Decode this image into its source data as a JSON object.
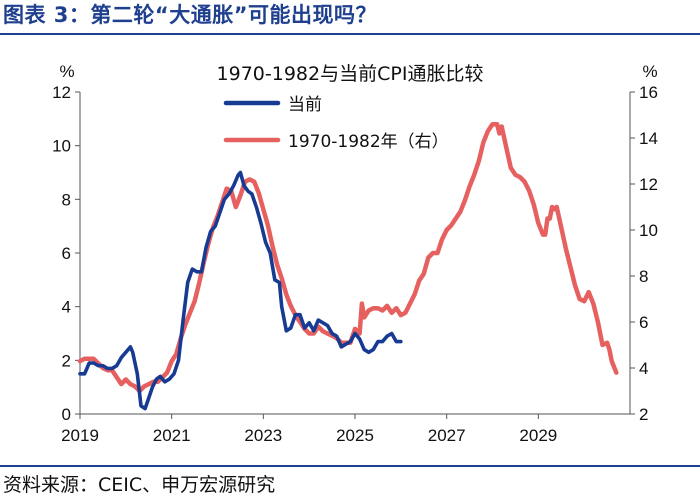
{
  "figure_title": "图表 3：第二轮“大通胀”可能出现吗？",
  "source": "资料来源：CEIC、申万宏源研究",
  "colors": {
    "brand": "#1f3f8f",
    "current": "#173a92",
    "historical": "#e66060"
  },
  "chart_data": {
    "type": "line",
    "title": "1970-1982与当前CPI通胀比较",
    "y_left": {
      "unit": "%",
      "range": [
        0,
        12
      ],
      "ticks": [
        "0",
        "2",
        "4",
        "6",
        "8",
        "10",
        "12"
      ]
    },
    "y_right": {
      "unit": "%",
      "range": [
        2,
        16
      ],
      "ticks": [
        "2",
        "4",
        "6",
        "8",
        "10",
        "12",
        "14",
        "16"
      ]
    },
    "x": {
      "range": [
        2019,
        2031
      ],
      "ticks": [
        "2019",
        "2021",
        "2023",
        "2025",
        "2027",
        "2029"
      ]
    },
    "legend": {
      "placement": "top-center"
    },
    "series": [
      {
        "name": "当前",
        "axis": "left",
        "color": "#173a92",
        "points": [
          [
            2019.0,
            1.5
          ],
          [
            2019.1,
            1.5
          ],
          [
            2019.2,
            1.9
          ],
          [
            2019.3,
            1.9
          ],
          [
            2019.4,
            1.8
          ],
          [
            2019.5,
            1.8
          ],
          [
            2019.6,
            1.7
          ],
          [
            2019.7,
            1.7
          ],
          [
            2019.8,
            1.8
          ],
          [
            2019.9,
            2.1
          ],
          [
            2020.0,
            2.3
          ],
          [
            2020.1,
            2.5
          ],
          [
            2020.15,
            2.3
          ],
          [
            2020.25,
            1.5
          ],
          [
            2020.33,
            0.3
          ],
          [
            2020.42,
            0.2
          ],
          [
            2020.5,
            0.6
          ],
          [
            2020.58,
            1.0
          ],
          [
            2020.67,
            1.3
          ],
          [
            2020.75,
            1.4
          ],
          [
            2020.85,
            1.2
          ],
          [
            2020.95,
            1.3
          ],
          [
            2021.05,
            1.5
          ],
          [
            2021.15,
            2.0
          ],
          [
            2021.25,
            3.5
          ],
          [
            2021.35,
            4.9
          ],
          [
            2021.45,
            5.4
          ],
          [
            2021.55,
            5.3
          ],
          [
            2021.65,
            5.3
          ],
          [
            2021.75,
            6.2
          ],
          [
            2021.85,
            6.8
          ],
          [
            2021.95,
            7.0
          ],
          [
            2022.05,
            7.5
          ],
          [
            2022.15,
            8.0
          ],
          [
            2022.25,
            8.2
          ],
          [
            2022.35,
            8.5
          ],
          [
            2022.45,
            8.9
          ],
          [
            2022.5,
            9.0
          ],
          [
            2022.58,
            8.5
          ],
          [
            2022.67,
            8.3
          ],
          [
            2022.75,
            8.2
          ],
          [
            2022.85,
            7.7
          ],
          [
            2022.95,
            7.1
          ],
          [
            2023.05,
            6.4
          ],
          [
            2023.15,
            6.0
          ],
          [
            2023.25,
            5.0
          ],
          [
            2023.35,
            4.9
          ],
          [
            2023.4,
            4.0
          ],
          [
            2023.5,
            3.1
          ],
          [
            2023.6,
            3.2
          ],
          [
            2023.7,
            3.7
          ],
          [
            2023.8,
            3.7
          ],
          [
            2023.9,
            3.2
          ],
          [
            2024.0,
            3.4
          ],
          [
            2024.1,
            3.1
          ],
          [
            2024.2,
            3.5
          ],
          [
            2024.3,
            3.4
          ],
          [
            2024.4,
            3.3
          ],
          [
            2024.5,
            3.0
          ],
          [
            2024.6,
            2.9
          ],
          [
            2024.7,
            2.5
          ],
          [
            2024.8,
            2.6
          ],
          [
            2024.9,
            2.7
          ],
          [
            2025.0,
            3.0
          ],
          [
            2025.1,
            2.8
          ],
          [
            2025.2,
            2.4
          ],
          [
            2025.3,
            2.3
          ],
          [
            2025.4,
            2.4
          ],
          [
            2025.5,
            2.7
          ],
          [
            2025.6,
            2.7
          ],
          [
            2025.7,
            2.9
          ],
          [
            2025.8,
            3.0
          ],
          [
            2025.9,
            2.7
          ],
          [
            2026.0,
            2.7
          ]
        ]
      },
      {
        "name": "1970-1982年（右）",
        "axis": "right",
        "color": "#e66060",
        "points": [
          [
            2019.0,
            4.3
          ],
          [
            2019.1,
            4.4
          ],
          [
            2019.2,
            4.4
          ],
          [
            2019.3,
            4.4
          ],
          [
            2019.4,
            4.2
          ],
          [
            2019.5,
            4.0
          ],
          [
            2019.6,
            3.9
          ],
          [
            2019.7,
            3.9
          ],
          [
            2019.8,
            3.6
          ],
          [
            2019.9,
            3.3
          ],
          [
            2020.0,
            3.5
          ],
          [
            2020.1,
            3.3
          ],
          [
            2020.2,
            3.2
          ],
          [
            2020.3,
            3.0
          ],
          [
            2020.4,
            3.2
          ],
          [
            2020.5,
            3.3
          ],
          [
            2020.6,
            3.4
          ],
          [
            2020.7,
            3.4
          ],
          [
            2020.8,
            3.6
          ],
          [
            2020.9,
            3.8
          ],
          [
            2021.0,
            4.3
          ],
          [
            2021.1,
            4.6
          ],
          [
            2021.2,
            5.3
          ],
          [
            2021.3,
            5.9
          ],
          [
            2021.4,
            6.4
          ],
          [
            2021.5,
            6.9
          ],
          [
            2021.6,
            7.7
          ],
          [
            2021.7,
            8.6
          ],
          [
            2021.8,
            9.4
          ],
          [
            2021.9,
            10.1
          ],
          [
            2022.0,
            10.6
          ],
          [
            2022.1,
            11.2
          ],
          [
            2022.2,
            11.8
          ],
          [
            2022.3,
            11.7
          ],
          [
            2022.4,
            11.0
          ],
          [
            2022.5,
            11.5
          ],
          [
            2022.6,
            12.1
          ],
          [
            2022.7,
            12.2
          ],
          [
            2022.8,
            12.1
          ],
          [
            2022.9,
            11.6
          ],
          [
            2023.0,
            10.9
          ],
          [
            2023.1,
            10.2
          ],
          [
            2023.2,
            9.3
          ],
          [
            2023.3,
            8.5
          ],
          [
            2023.4,
            7.9
          ],
          [
            2023.5,
            7.2
          ],
          [
            2023.6,
            6.7
          ],
          [
            2023.7,
            6.3
          ],
          [
            2023.8,
            6.0
          ],
          [
            2023.9,
            5.7
          ],
          [
            2024.0,
            5.5
          ],
          [
            2024.1,
            5.5
          ],
          [
            2024.2,
            5.8
          ],
          [
            2024.3,
            5.6
          ],
          [
            2024.4,
            5.5
          ],
          [
            2024.5,
            5.4
          ],
          [
            2024.6,
            5.3
          ],
          [
            2024.7,
            5.1
          ],
          [
            2024.8,
            5.1
          ],
          [
            2024.9,
            5.1
          ],
          [
            2025.0,
            5.7
          ],
          [
            2025.1,
            5.5
          ],
          [
            2025.15,
            6.8
          ],
          [
            2025.2,
            6.2
          ],
          [
            2025.3,
            6.5
          ],
          [
            2025.4,
            6.6
          ],
          [
            2025.5,
            6.6
          ],
          [
            2025.6,
            6.5
          ],
          [
            2025.7,
            6.7
          ],
          [
            2025.8,
            6.4
          ],
          [
            2025.9,
            6.6
          ],
          [
            2026.0,
            6.3
          ],
          [
            2026.1,
            6.4
          ],
          [
            2026.2,
            6.8
          ],
          [
            2026.3,
            7.2
          ],
          [
            2026.4,
            7.8
          ],
          [
            2026.5,
            8.1
          ],
          [
            2026.6,
            8.8
          ],
          [
            2026.7,
            9.0
          ],
          [
            2026.8,
            9.0
          ],
          [
            2026.9,
            9.6
          ],
          [
            2027.0,
            10.0
          ],
          [
            2027.1,
            10.2
          ],
          [
            2027.2,
            10.5
          ],
          [
            2027.3,
            10.8
          ],
          [
            2027.4,
            11.3
          ],
          [
            2027.5,
            11.9
          ],
          [
            2027.6,
            12.4
          ],
          [
            2027.7,
            13.0
          ],
          [
            2027.8,
            13.8
          ],
          [
            2027.9,
            14.3
          ],
          [
            2028.0,
            14.6
          ],
          [
            2028.1,
            14.6
          ],
          [
            2028.15,
            14.2
          ],
          [
            2028.2,
            14.5
          ],
          [
            2028.3,
            13.6
          ],
          [
            2028.4,
            12.7
          ],
          [
            2028.5,
            12.4
          ],
          [
            2028.6,
            12.3
          ],
          [
            2028.7,
            12.1
          ],
          [
            2028.8,
            11.7
          ],
          [
            2028.9,
            11.1
          ],
          [
            2029.0,
            10.3
          ],
          [
            2029.1,
            9.8
          ],
          [
            2029.15,
            9.8
          ],
          [
            2029.2,
            10.5
          ],
          [
            2029.25,
            10.5
          ],
          [
            2029.3,
            11.0
          ],
          [
            2029.35,
            10.9
          ],
          [
            2029.4,
            11.0
          ],
          [
            2029.5,
            10.1
          ],
          [
            2029.6,
            9.2
          ],
          [
            2029.7,
            8.4
          ],
          [
            2029.8,
            7.6
          ],
          [
            2029.9,
            7.0
          ],
          [
            2030.0,
            6.9
          ],
          [
            2030.1,
            7.3
          ],
          [
            2030.2,
            6.8
          ],
          [
            2030.3,
            6.0
          ],
          [
            2030.4,
            5.0
          ],
          [
            2030.5,
            5.1
          ],
          [
            2030.55,
            4.8
          ],
          [
            2030.6,
            4.3
          ],
          [
            2030.7,
            3.8
          ]
        ]
      }
    ]
  }
}
